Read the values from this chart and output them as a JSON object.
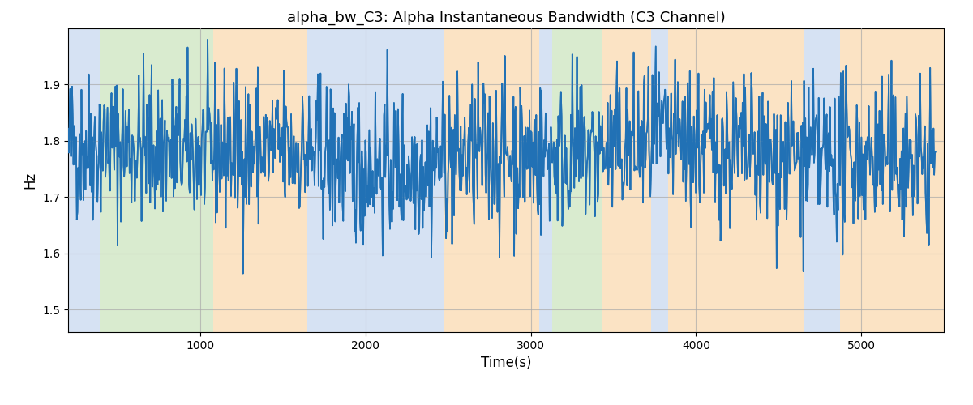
{
  "title": "alpha_bw_C3: Alpha Instantaneous Bandwidth (C3 Channel)",
  "xlabel": "Time(s)",
  "ylabel": "Hz",
  "xlim": [
    200,
    5500
  ],
  "ylim": [
    1.46,
    2.0
  ],
  "yticks": [
    1.5,
    1.6,
    1.7,
    1.8,
    1.9
  ],
  "xticks": [
    1000,
    2000,
    3000,
    4000,
    5000
  ],
  "line_color": "#2171b5",
  "line_width": 1.2,
  "background_color": "#ffffff",
  "grid_color": "#aaaaaa",
  "grid_alpha": 0.7,
  "bands": [
    {
      "xmin": 200,
      "xmax": 390,
      "color": "#aec6e8",
      "alpha": 0.5
    },
    {
      "xmin": 390,
      "xmax": 1080,
      "color": "#b5d9a0",
      "alpha": 0.5
    },
    {
      "xmin": 1080,
      "xmax": 1650,
      "color": "#f9c98a",
      "alpha": 0.5
    },
    {
      "xmin": 1650,
      "xmax": 1870,
      "color": "#aec6e8",
      "alpha": 0.5
    },
    {
      "xmin": 1870,
      "xmax": 2470,
      "color": "#aec6e8",
      "alpha": 0.5
    },
    {
      "xmin": 2470,
      "xmax": 3050,
      "color": "#f9c98a",
      "alpha": 0.5
    },
    {
      "xmin": 3050,
      "xmax": 3130,
      "color": "#aec6e8",
      "alpha": 0.5
    },
    {
      "xmin": 3130,
      "xmax": 3430,
      "color": "#b5d9a0",
      "alpha": 0.5
    },
    {
      "xmin": 3430,
      "xmax": 3730,
      "color": "#f9c98a",
      "alpha": 0.5
    },
    {
      "xmin": 3730,
      "xmax": 3830,
      "color": "#aec6e8",
      "alpha": 0.5
    },
    {
      "xmin": 3830,
      "xmax": 4650,
      "color": "#f9c98a",
      "alpha": 0.5
    },
    {
      "xmin": 4650,
      "xmax": 4870,
      "color": "#aec6e8",
      "alpha": 0.5
    },
    {
      "xmin": 4870,
      "xmax": 5500,
      "color": "#f9c98a",
      "alpha": 0.5
    }
  ],
  "seed": 42,
  "n_points": 1300,
  "t_start": 200,
  "t_end": 5450,
  "mean": 1.775,
  "std": 0.068,
  "title_fontsize": 13
}
